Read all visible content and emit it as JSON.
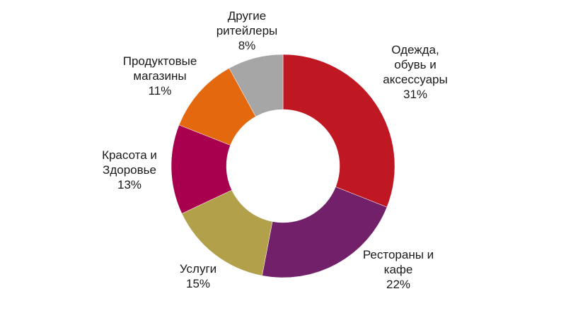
{
  "chart_data": {
    "type": "pie",
    "variant": "donut",
    "title": "",
    "legend": "none",
    "slices": [
      {
        "label_lines": [
          "Одежда,",
          "обувь и",
          "аксессуары"
        ],
        "percent_label": "31%",
        "value": 31,
        "color": "#bf1823"
      },
      {
        "label_lines": [
          "Рестораны и",
          "кафе"
        ],
        "percent_label": "22%",
        "value": 22,
        "color": "#72206a"
      },
      {
        "label_lines": [
          "Услуги"
        ],
        "percent_label": "15%",
        "value": 15,
        "color": "#b2a04a"
      },
      {
        "label_lines": [
          "Красота и",
          "Здоровье"
        ],
        "percent_label": "13%",
        "value": 13,
        "color": "#a8004e"
      },
      {
        "label_lines": [
          "Продуктовые",
          "магазины"
        ],
        "percent_label": "11%",
        "value": 11,
        "color": "#e3680e"
      },
      {
        "label_lines": [
          "Другие",
          "ритейлеры"
        ],
        "percent_label": "8%",
        "value": 8,
        "color": "#a6a6a6"
      }
    ]
  }
}
